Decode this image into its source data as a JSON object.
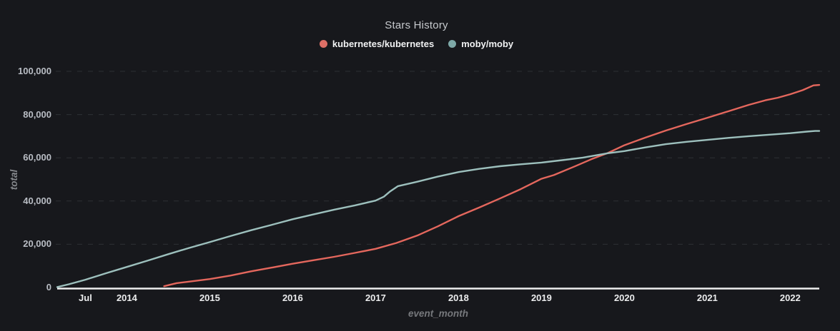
{
  "chart": {
    "title": "Stars History",
    "y_axis_label": "total",
    "x_axis_label": "event_month"
  },
  "colors": {
    "background": "#17181c",
    "gridline": "#2e3034",
    "axis_line": "#eeeeee",
    "title_text": "#c6c9cd",
    "legend_text": "#f1f2f3",
    "y_tick_text": "#b9bdc4",
    "x_tick_text": "#ebeced",
    "axis_title_text": "#85888c"
  },
  "chart_data": {
    "type": "line",
    "title": "Stars History",
    "xlabel": "event_month",
    "ylabel": "total",
    "legend_position": "top-center",
    "grid": "horizontal dashed lines at each 20,000",
    "x_unit": "decimal_year (time, Mar 2013 - May 2022)",
    "x_range": [
      2013.16,
      2022.35
    ],
    "y_range": [
      0,
      100000
    ],
    "x_ticks": [
      {
        "t": 2013.5,
        "label": "Jul"
      },
      {
        "t": 2014,
        "label": "2014"
      },
      {
        "t": 2015,
        "label": "2015"
      },
      {
        "t": 2016,
        "label": "2016"
      },
      {
        "t": 2017,
        "label": "2017"
      },
      {
        "t": 2018,
        "label": "2018"
      },
      {
        "t": 2019,
        "label": "2019"
      },
      {
        "t": 2020,
        "label": "2020"
      },
      {
        "t": 2021,
        "label": "2021"
      },
      {
        "t": 2022,
        "label": "2022"
      }
    ],
    "y_ticks": [
      {
        "value": 0,
        "label": "0"
      },
      {
        "value": 20000,
        "label": "20,000"
      },
      {
        "value": 40000,
        "label": "40,000"
      },
      {
        "value": 60000,
        "label": "60,000"
      },
      {
        "value": 80000,
        "label": "80,000"
      },
      {
        "value": 100000,
        "label": "100,000"
      }
    ],
    "series": [
      {
        "name": "kubernetes/kubernetes",
        "color": "#e4675d",
        "dot_color": "#dd6f66",
        "points": [
          [
            2014.45,
            600
          ],
          [
            2014.6,
            2000
          ],
          [
            2014.75,
            2700
          ],
          [
            2015.0,
            3900
          ],
          [
            2015.25,
            5500
          ],
          [
            2015.5,
            7500
          ],
          [
            2015.75,
            9200
          ],
          [
            2016.0,
            11000
          ],
          [
            2016.25,
            12600
          ],
          [
            2016.5,
            14200
          ],
          [
            2016.75,
            16000
          ],
          [
            2017.0,
            17900
          ],
          [
            2017.25,
            20600
          ],
          [
            2017.5,
            24000
          ],
          [
            2017.75,
            28300
          ],
          [
            2018.0,
            33000
          ],
          [
            2018.25,
            37000
          ],
          [
            2018.5,
            41200
          ],
          [
            2018.75,
            45500
          ],
          [
            2019.0,
            50300
          ],
          [
            2019.15,
            52000
          ],
          [
            2019.4,
            56000
          ],
          [
            2019.6,
            59300
          ],
          [
            2019.8,
            62200
          ],
          [
            2020.0,
            65800
          ],
          [
            2020.25,
            69300
          ],
          [
            2020.5,
            72600
          ],
          [
            2020.75,
            75600
          ],
          [
            2021.0,
            78500
          ],
          [
            2021.25,
            81500
          ],
          [
            2021.5,
            84500
          ],
          [
            2021.7,
            86600
          ],
          [
            2021.85,
            87800
          ],
          [
            2022.0,
            89400
          ],
          [
            2022.15,
            91300
          ],
          [
            2022.28,
            93500
          ],
          [
            2022.35,
            93700
          ]
        ]
      },
      {
        "name": "moby/moby",
        "color": "#9dc0bd",
        "dot_color": "#7ea9a8",
        "points": [
          [
            2013.16,
            200
          ],
          [
            2013.3,
            1500
          ],
          [
            2013.5,
            3600
          ],
          [
            2013.75,
            6600
          ],
          [
            2014.0,
            9500
          ],
          [
            2014.25,
            12400
          ],
          [
            2014.5,
            15400
          ],
          [
            2014.75,
            18300
          ],
          [
            2015.0,
            21000
          ],
          [
            2015.25,
            23800
          ],
          [
            2015.5,
            26500
          ],
          [
            2015.75,
            29000
          ],
          [
            2016.0,
            31600
          ],
          [
            2016.25,
            33800
          ],
          [
            2016.5,
            36000
          ],
          [
            2016.75,
            38000
          ],
          [
            2017.0,
            40200
          ],
          [
            2017.1,
            42000
          ],
          [
            2017.17,
            44300
          ],
          [
            2017.27,
            46900
          ],
          [
            2017.5,
            48900
          ],
          [
            2017.75,
            51300
          ],
          [
            2018.0,
            53400
          ],
          [
            2018.25,
            54900
          ],
          [
            2018.5,
            56100
          ],
          [
            2018.75,
            57000
          ],
          [
            2019.0,
            57800
          ],
          [
            2019.25,
            58900
          ],
          [
            2019.5,
            60100
          ],
          [
            2019.8,
            62100
          ],
          [
            2020.0,
            63100
          ],
          [
            2020.25,
            64800
          ],
          [
            2020.5,
            66300
          ],
          [
            2020.75,
            67400
          ],
          [
            2021.0,
            68300
          ],
          [
            2021.25,
            69200
          ],
          [
            2021.5,
            70000
          ],
          [
            2021.75,
            70700
          ],
          [
            2022.0,
            71400
          ],
          [
            2022.2,
            72100
          ],
          [
            2022.3,
            72400
          ],
          [
            2022.35,
            72400
          ]
        ]
      }
    ]
  }
}
